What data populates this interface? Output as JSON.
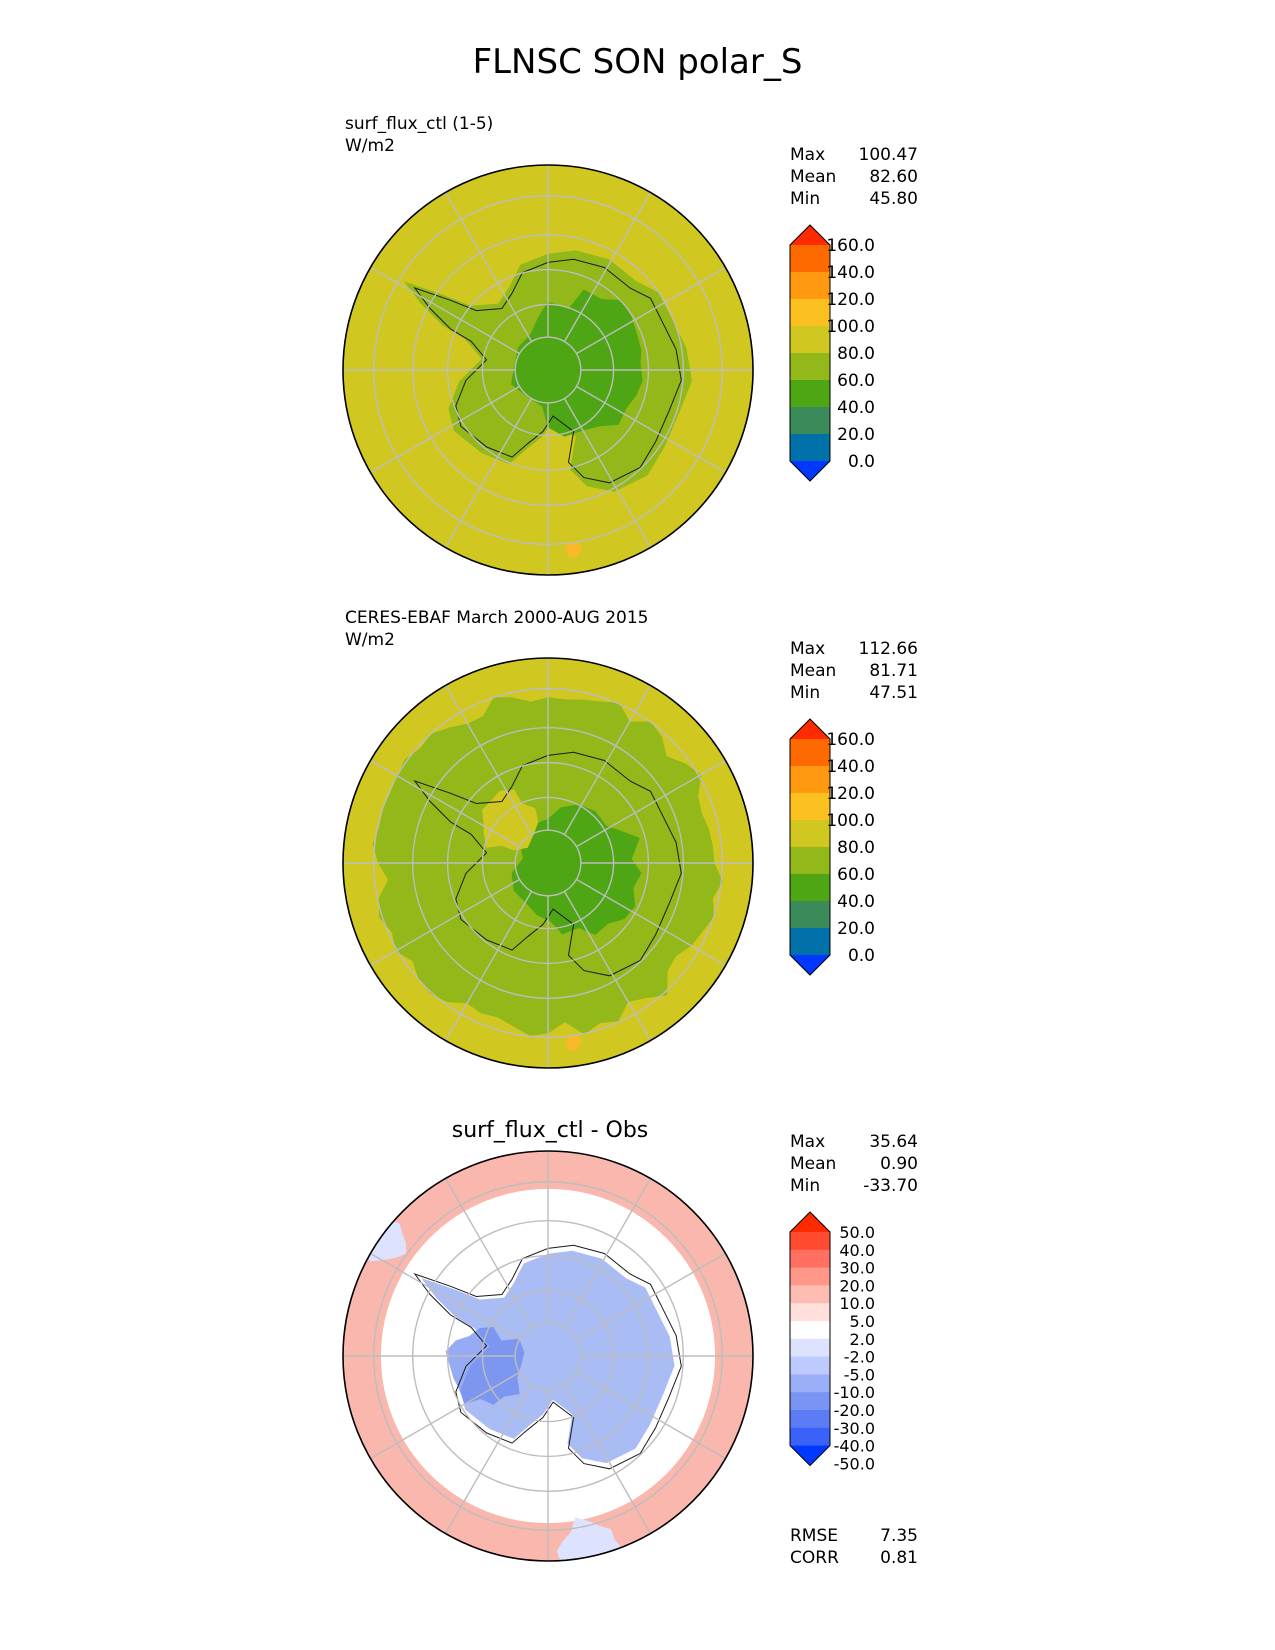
{
  "title": "FLNSC SON polar_S",
  "colors": {
    "land_mask_ocean": "#d0c820",
    "green_mid": "#92b81a",
    "green_dark": "#4ea614",
    "orange_spot": "#f9b92a",
    "diff_pos": "#f8aaa0",
    "diff_neg": "#8ea6f0",
    "coast": "#1a1a1a",
    "grid": "#bdbdbd"
  },
  "panels": [
    {
      "title": "surf_flux_ctl (1-5)",
      "units": "W/m2",
      "stats": [
        {
          "label": "Max",
          "value": "100.47"
        },
        {
          "label": "Mean",
          "value": "82.60"
        },
        {
          "label": "Min",
          "value": "45.80"
        }
      ]
    },
    {
      "title": "CERES-EBAF March 2000-AUG 2015",
      "units": "W/m2",
      "stats": [
        {
          "label": "Max",
          "value": "112.66"
        },
        {
          "label": "Mean",
          "value": "81.71"
        },
        {
          "label": "Min",
          "value": "47.51"
        }
      ]
    },
    {
      "title": "surf_flux_ctl - Obs",
      "stats": [
        {
          "label": "Max",
          "value": "35.64"
        },
        {
          "label": "Mean",
          "value": "0.90"
        },
        {
          "label": "Min",
          "value": "-33.70"
        }
      ],
      "metrics": [
        {
          "label": "RMSE",
          "value": "7.35"
        },
        {
          "label": "CORR",
          "value": "0.81"
        }
      ]
    }
  ],
  "colorbar_main": {
    "colors": [
      "#ff2a00",
      "#ff6a00",
      "#ff9a10",
      "#fcc020",
      "#d0c820",
      "#92b81a",
      "#4ea614",
      "#3a8a5a",
      "#0070a8",
      "#0038ff"
    ],
    "labels": [
      "160.0",
      "140.0",
      "120.0",
      "100.0",
      "80.0",
      "60.0",
      "40.0",
      "20.0",
      "0.0"
    ]
  },
  "colorbar_diff": {
    "colors": [
      "#ff2a00",
      "#ff4a30",
      "#ff7060",
      "#ff9888",
      "#ffbcb2",
      "#ffe0db",
      "#ffffff",
      "#dde2ff",
      "#bccaff",
      "#9aaff8",
      "#7a94f4",
      "#5c7cf6",
      "#3a62f8",
      "#0038ff"
    ],
    "labels": [
      "50.0",
      "40.0",
      "30.0",
      "20.0",
      "10.0",
      "5.0",
      "2.0",
      "-2.0",
      "-5.0",
      "-10.0",
      "-20.0",
      "-30.0",
      "-40.0",
      "-50.0"
    ]
  }
}
